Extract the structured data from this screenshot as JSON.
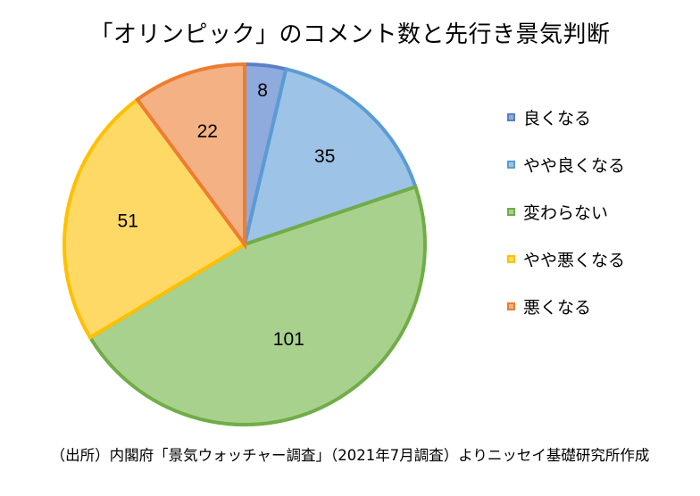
{
  "chart_data": {
    "type": "pie",
    "title": "「オリンピック」のコメント数と先行き景気判断",
    "slices": [
      {
        "name": "良くなる",
        "value": 8,
        "color": "#5b7fc7",
        "fill": "#8faadc"
      },
      {
        "name": "やや良くなる",
        "value": 35,
        "color": "#5b9bd5",
        "fill": "#9dc3e6"
      },
      {
        "name": "変わらない",
        "value": 101,
        "color": "#70ad47",
        "fill": "#a9d18e"
      },
      {
        "name": "やや悪くなる",
        "value": 51,
        "color": "#ffc000",
        "fill": "#ffd966"
      },
      {
        "name": "悪くなる",
        "value": 22,
        "color": "#ed7d31",
        "fill": "#f4b183"
      }
    ],
    "legend_position": "right",
    "start_angle": "top",
    "direction": "clockwise"
  },
  "source_note": "（出所）内閣府「景気ウォッチャー調査」（2021年7月調査）よりニッセイ基礎研究所作成"
}
